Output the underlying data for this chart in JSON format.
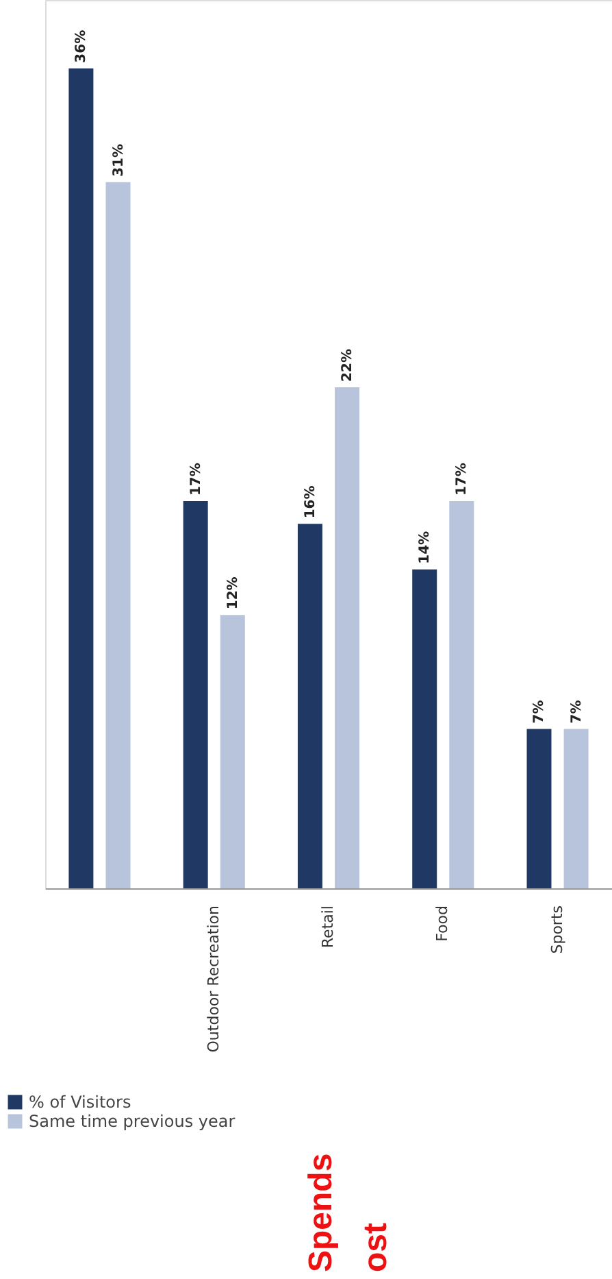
{
  "chart_data": {
    "type": "bar",
    "categories": [
      null,
      "Outdoor Recreation",
      "Retail",
      "Food",
      "Sports"
    ],
    "series": [
      {
        "name": "% of Visitors",
        "color": "#1f3864",
        "values": [
          36,
          17,
          16,
          14,
          7
        ],
        "value_labels": [
          "36%",
          "17%",
          "16%",
          "14%",
          "7%"
        ]
      },
      {
        "name": "Same time previous year",
        "color": "#b7c4dc",
        "values": [
          31,
          12,
          22,
          17,
          7
        ],
        "value_labels": [
          "31%",
          "12%",
          "22%",
          "17%",
          "7%"
        ]
      }
    ],
    "ylim": [
      0,
      39
    ],
    "grid": false,
    "legend": "bottom left",
    "annotations": [
      "Spends",
      "ost"
    ]
  }
}
